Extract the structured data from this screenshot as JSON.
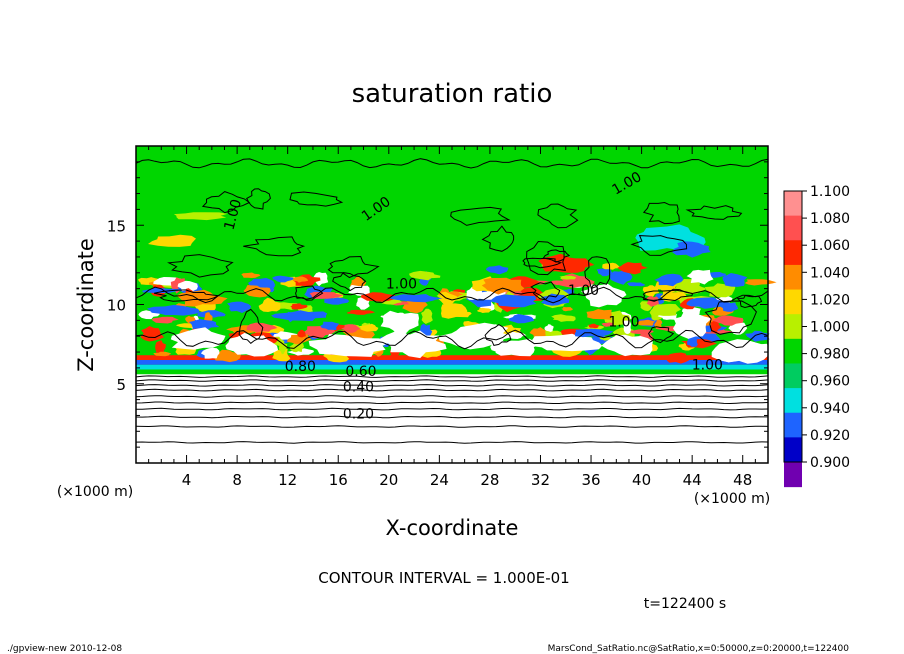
{
  "chart_data": {
    "type": "heatmap",
    "title": "saturation ratio",
    "xlabel": "X-coordinate",
    "ylabel": "Z-coordinate",
    "x_unit": "(×1000 m)",
    "y_unit": "(×1000 m)",
    "xlim": [
      0,
      50
    ],
    "ylim": [
      0,
      20
    ],
    "x_ticks": [
      "4",
      "8",
      "12",
      "16",
      "20",
      "24",
      "28",
      "32",
      "36",
      "40",
      "44",
      "48"
    ],
    "y_ticks": [
      "5",
      "10",
      "15"
    ],
    "colorbar": {
      "levels": [
        "1.100",
        "1.080",
        "1.060",
        "1.040",
        "1.020",
        "1.000",
        "0.980",
        "0.960",
        "0.940",
        "0.920",
        "0.900"
      ],
      "colors": [
        "#ff9090",
        "#ff5050",
        "#ff2800",
        "#ff8c00",
        "#ffd800",
        "#b8f000",
        "#00d600",
        "#00cc60",
        "#00e0e0",
        "#1e64ff",
        "#0000c8",
        "#7000b0"
      ]
    },
    "contour_labels": [
      "1.00",
      "1.00",
      "1.00",
      "1.00",
      "1.00",
      "1.00",
      "1.00",
      "0.80",
      "0.60",
      "0.40",
      "0.20"
    ],
    "contour_interval_text": "CONTOUR INTERVAL = 1.000E-01",
    "time_text": "t=122400  s"
  },
  "footer": {
    "left": "./gpview-new   2010-12-08",
    "right": "MarsCond_SatRatio.nc@SatRatio,x=0:50000,z=0:20000,t=122400"
  }
}
